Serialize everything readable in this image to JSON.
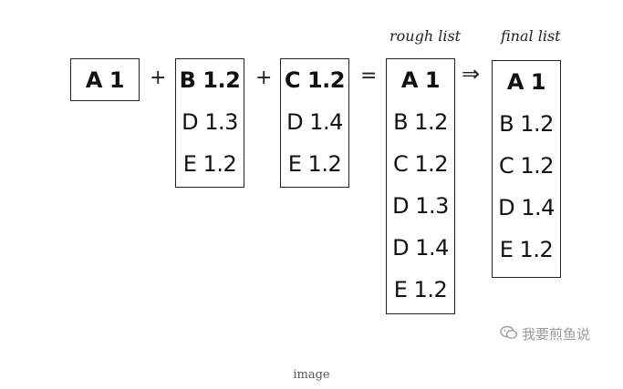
{
  "labels": {
    "rough": "rough list",
    "final": "final list"
  },
  "operators": {
    "plus1": "+",
    "plus2": "+",
    "equals": "=",
    "arrow": "⇒"
  },
  "box_a": {
    "item0": "A 1"
  },
  "box_b": {
    "item0": "B 1.2",
    "item1": "D 1.3",
    "item2": "E 1.2"
  },
  "box_c": {
    "item0": "C 1.2",
    "item1": "D 1.4",
    "item2": "E 1.2"
  },
  "rough_list": {
    "item0": "A 1",
    "item1": "B 1.2",
    "item2": "C 1.2",
    "item3": "D 1.3",
    "item4": "D 1.4",
    "item5": "E 1.2"
  },
  "final_list": {
    "item0": "A 1",
    "item1": "B 1.2",
    "item2": "C 1.2",
    "item3": "D 1.4",
    "item4": "E 1.2"
  },
  "watermark": {
    "icon": "wechat-icon",
    "text": "我要煎鱼说"
  },
  "caption": "image"
}
